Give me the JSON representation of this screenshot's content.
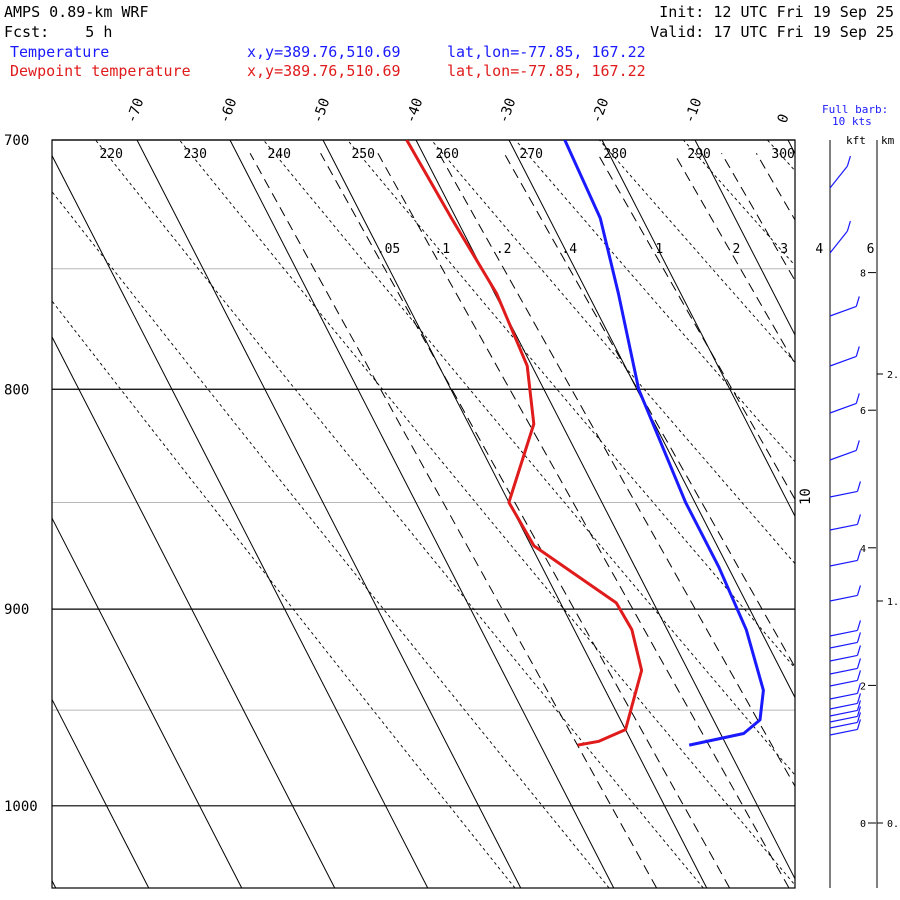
{
  "header": {
    "title": "AMPS 0.89-km WRF",
    "fcst": "Fcst:    5 h",
    "init": "Init: 12 UTC Fri 19 Sep 25",
    "valid": "Valid: 17 UTC Fri 19 Sep 25",
    "temp_label": "Temperature",
    "dew_label": "Dewpoint temperature",
    "temp_xy": "x,y=389.76,510.69",
    "dew_xy": "x,y=389.76,510.69",
    "temp_latlon": "lat,lon=-77.85, 167.22",
    "dew_latlon": "lat,lon=-77.85, 167.22",
    "barb_title": "Full barb:",
    "barb_value": "10 kts",
    "kft_label": "kft",
    "km_label": "km"
  },
  "colors": {
    "temperature": "#1a1aff",
    "dewpoint": "#e01b1b"
  },
  "chart_data": {
    "type": "line",
    "subtype": "skew-T log-p",
    "y_axis": {
      "label": "",
      "scale": "log",
      "ticks": [
        700,
        800,
        900,
        1000
      ],
      "range": [
        1045,
        700
      ]
    },
    "x_axis": {
      "label": "",
      "ticks": [
        -70,
        -60,
        -50,
        -40,
        -30,
        -20,
        -10,
        0
      ]
    },
    "theta_labels": [
      220,
      230,
      240,
      250,
      260,
      270,
      280,
      290,
      300
    ],
    "mixing_ratio_labels": [
      ".05",
      ".1",
      ".2",
      ".4",
      "1",
      "2",
      "3",
      "4",
      "6"
    ],
    "side_label": "10",
    "series": [
      {
        "name": "Temperature",
        "color": "#1a1aff",
        "points": [
          {
            "p": 700,
            "t": -24
          },
          {
            "p": 730,
            "t": -24.5
          },
          {
            "p": 760,
            "t": -26.7
          },
          {
            "p": 800,
            "t": -29.8
          },
          {
            "p": 850,
            "t": -31
          },
          {
            "p": 880,
            "t": -31
          },
          {
            "p": 910,
            "t": -31.5
          },
          {
            "p": 940,
            "t": -33
          },
          {
            "p": 955,
            "t": -35
          },
          {
            "p": 962,
            "t": -37.5
          },
          {
            "p": 968,
            "t": -44
          }
        ]
      },
      {
        "name": "Dewpoint temperature",
        "color": "#e01b1b",
        "points": [
          {
            "p": 700,
            "t": -41
          },
          {
            "p": 730,
            "t": -40.5
          },
          {
            "p": 760,
            "t": -39.8
          },
          {
            "p": 790,
            "t": -40.5
          },
          {
            "p": 815,
            "t": -43
          },
          {
            "p": 850,
            "t": -50
          },
          {
            "p": 870,
            "t": -49.7
          },
          {
            "p": 897,
            "t": -44
          },
          {
            "p": 910,
            "t": -43.8
          },
          {
            "p": 930,
            "t": -45
          },
          {
            "p": 960,
            "t": -50
          },
          {
            "p": 966,
            "t": -53.5
          },
          {
            "p": 968,
            "t": -56
          }
        ]
      }
    ],
    "wind_axis": {
      "kft_ticks": [
        {
          "z": 0,
          "label": "0"
        },
        {
          "z": 2,
          "label": "2"
        },
        {
          "z": 4,
          "label": "4"
        },
        {
          "z": 6,
          "label": "6"
        },
        {
          "z": 8,
          "label": "8"
        }
      ],
      "km_ticks": [
        {
          "z": 0,
          "label": "0."
        },
        {
          "z": 1.5,
          "label": "1."
        },
        {
          "z": 2.2,
          "label": "2."
        }
      ]
    }
  }
}
